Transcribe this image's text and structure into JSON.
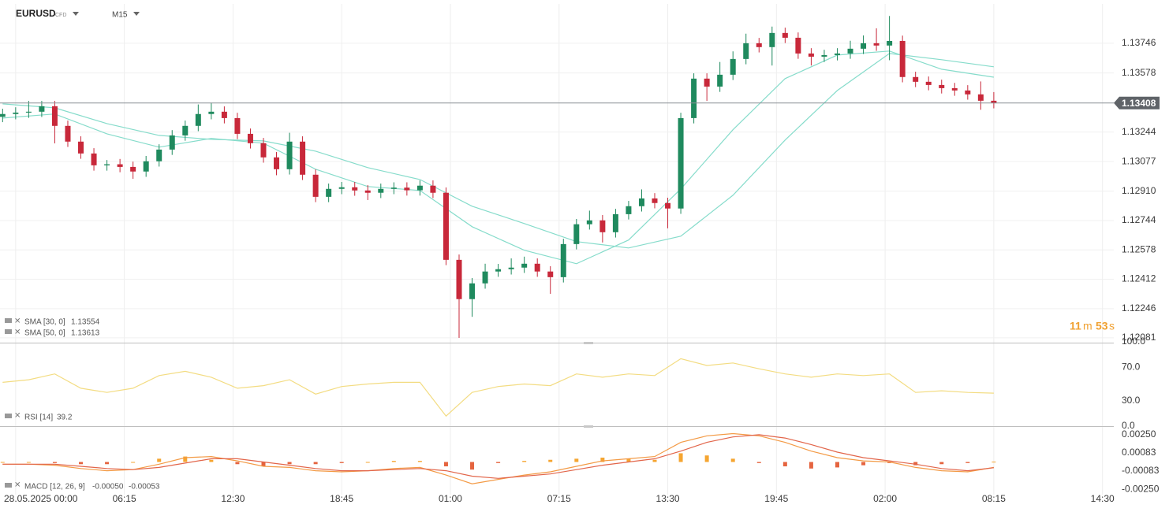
{
  "header": {
    "symbol": "EURUSD",
    "badge": "CFD",
    "timeframe": "M15"
  },
  "countdown": [
    "11",
    "m",
    "53",
    "s"
  ],
  "chart_data": [
    {
      "type": "candlestick",
      "x": [
        -3,
        0,
        3,
        6,
        9,
        12,
        15,
        18,
        21,
        24,
        27,
        30,
        33,
        36,
        39,
        42,
        45,
        48,
        51,
        54,
        57,
        60,
        63,
        66,
        69,
        72,
        75,
        78,
        81,
        84,
        87,
        90,
        93,
        96,
        99,
        102,
        105,
        108,
        111,
        114,
        117,
        120,
        123,
        126,
        129,
        132,
        135,
        138,
        141,
        144,
        147,
        150,
        153,
        156,
        159,
        162,
        165,
        168,
        171,
        174,
        177,
        180,
        183,
        186,
        189,
        192,
        195,
        198,
        201,
        204,
        207,
        210,
        213,
        216,
        219,
        222,
        225
      ],
      "open": [
        1.1333,
        1.13346,
        1.13354,
        1.13359,
        1.1339,
        1.13279,
        1.1319,
        1.13123,
        1.13056,
        1.13062,
        1.13047,
        1.13021,
        1.13079,
        1.13145,
        1.13225,
        1.13279,
        1.13346,
        1.13359,
        1.13323,
        1.13234,
        1.13181,
        1.13101,
        1.13034,
        1.1319,
        1.13003,
        1.12878,
        1.12923,
        1.12932,
        1.12914,
        1.12901,
        1.12923,
        1.1293,
        1.12915,
        1.12941,
        1.12901,
        1.12522,
        1.123,
        1.12389,
        1.12456,
        1.12469,
        1.12478,
        1.125,
        1.12456,
        1.12424,
        1.12611,
        1.12723,
        1.12745,
        1.12678,
        1.1278,
        1.12825,
        1.12869,
        1.12843,
        1.12812,
        1.13323,
        1.13546,
        1.13501,
        1.13568,
        1.13657,
        1.13746,
        1.13724,
        1.13804,
        1.13777,
        1.13688,
        1.1367,
        1.13679,
        1.13688,
        1.13715,
        1.13746,
        1.13733,
        1.13759,
        1.13555,
        1.13528,
        1.1351,
        1.13492,
        1.13479,
        1.13457,
        1.13421
      ],
      "high": [
        1.13376,
        1.13384,
        1.1342,
        1.1342,
        1.1342,
        1.13309,
        1.1322,
        1.13153,
        1.13086,
        1.13092,
        1.13077,
        1.13109,
        1.13175,
        1.13255,
        1.13309,
        1.134,
        1.1341,
        1.13389,
        1.13353,
        1.13264,
        1.13211,
        1.13131,
        1.1324,
        1.1322,
        1.13033,
        1.12953,
        1.12962,
        1.12962,
        1.12944,
        1.12953,
        1.1296,
        1.1296,
        1.12971,
        1.12971,
        1.12931,
        1.12552,
        1.12419,
        1.125,
        1.12499,
        1.1253,
        1.1254,
        1.1253,
        1.12486,
        1.12641,
        1.12753,
        1.128,
        1.12775,
        1.1281,
        1.12855,
        1.1292,
        1.12899,
        1.12873,
        1.13353,
        1.13576,
        1.13576,
        1.1364,
        1.137,
        1.138,
        1.13776,
        1.1384,
        1.13834,
        1.13807,
        1.13718,
        1.13709,
        1.13718,
        1.1376,
        1.1379,
        1.1383,
        1.139,
        1.13789,
        1.13585,
        1.13558,
        1.1354,
        1.13522,
        1.13509,
        1.1353,
        1.1347
      ],
      "low": [
        1.133,
        1.13316,
        1.13324,
        1.13329,
        1.1318,
        1.1316,
        1.13093,
        1.13026,
        1.13026,
        1.13017,
        1.1298,
        1.12991,
        1.13049,
        1.13115,
        1.13195,
        1.13249,
        1.13316,
        1.13293,
        1.13204,
        1.13151,
        1.13071,
        1.13,
        1.13004,
        1.12973,
        1.12848,
        1.12848,
        1.12893,
        1.12884,
        1.1286,
        1.12871,
        1.12893,
        1.12885,
        1.12885,
        1.12871,
        1.12492,
        1.12081,
        1.122,
        1.12359,
        1.12426,
        1.12439,
        1.12448,
        1.12426,
        1.1233,
        1.12394,
        1.12581,
        1.12693,
        1.1262,
        1.12648,
        1.1275,
        1.12795,
        1.12813,
        1.127,
        1.12782,
        1.13293,
        1.1342,
        1.13471,
        1.13538,
        1.13627,
        1.13694,
        1.1362,
        1.13747,
        1.13658,
        1.1362,
        1.1364,
        1.13649,
        1.13658,
        1.13685,
        1.13703,
        1.1365,
        1.13525,
        1.13498,
        1.1348,
        1.13462,
        1.13449,
        1.13427,
        1.1337,
        1.13378
      ],
      "close": [
        1.13346,
        1.13354,
        1.13359,
        1.1339,
        1.13279,
        1.1319,
        1.13123,
        1.13056,
        1.13062,
        1.13047,
        1.13021,
        1.13079,
        1.13145,
        1.13225,
        1.13279,
        1.13346,
        1.13359,
        1.13323,
        1.13234,
        1.13181,
        1.13101,
        1.13034,
        1.1319,
        1.13003,
        1.12878,
        1.12923,
        1.12932,
        1.12914,
        1.12901,
        1.12923,
        1.1293,
        1.12915,
        1.12941,
        1.12901,
        1.12522,
        1.123,
        1.12389,
        1.12456,
        1.12469,
        1.12478,
        1.125,
        1.12456,
        1.12424,
        1.12611,
        1.12723,
        1.12745,
        1.12678,
        1.1278,
        1.12825,
        1.12869,
        1.12843,
        1.12812,
        1.13323,
        1.13546,
        1.13501,
        1.13568,
        1.13657,
        1.13746,
        1.13724,
        1.13804,
        1.13777,
        1.13688,
        1.1367,
        1.13679,
        1.13688,
        1.13715,
        1.13746,
        1.13733,
        1.13759,
        1.13555,
        1.13528,
        1.1351,
        1.13492,
        1.13479,
        1.13457,
        1.13421,
        1.13408
      ],
      "up_color": "#1f8a5e",
      "down_color": "#c8283a",
      "price_line_color": "#8a8f96",
      "series": [
        {
          "name": "SMA [30, 0]",
          "color": "#86dccb",
          "x": [
            -3,
            9,
            21,
            33,
            45,
            57,
            69,
            81,
            93,
            105,
            117,
            129,
            141,
            153,
            165,
            177,
            189,
            201,
            213,
            225
          ],
          "values": [
            1.13323,
            1.13346,
            1.13234,
            1.13159,
            1.13208,
            1.13181,
            1.13034,
            1.12936,
            1.12914,
            1.12709,
            1.12576,
            1.125,
            1.12634,
            1.12923,
            1.13257,
            1.13546,
            1.13679,
            1.13702,
            1.13599,
            1.13554
          ]
        },
        {
          "name": "SMA [50, 0]",
          "color": "#86dccb",
          "x": [
            -3,
            9,
            21,
            33,
            45,
            57,
            69,
            81,
            93,
            105,
            117,
            129,
            141,
            153,
            165,
            177,
            189,
            201,
            213,
            225
          ],
          "values": [
            1.13403,
            1.13381,
            1.13292,
            1.13225,
            1.13203,
            1.13194,
            1.13136,
            1.13043,
            1.12976,
            1.12825,
            1.12727,
            1.12625,
            1.12589,
            1.12656,
            1.12887,
            1.13199,
            1.13479,
            1.13688,
            1.13653,
            1.13613
          ]
        }
      ],
      "xlim": [
        -3.6,
        252.6
      ],
      "xticks": [
        {
          "value": 0,
          "label": "28.05.2025  00:00"
        },
        {
          "value": 25,
          "label": "06:15"
        },
        {
          "value": 50,
          "label": "12:30"
        },
        {
          "value": 75,
          "label": "18:45"
        },
        {
          "value": 100,
          "label": "01:00"
        },
        {
          "value": 125,
          "label": "07:15"
        },
        {
          "value": 150,
          "label": "13:30"
        },
        {
          "value": 175,
          "label": "19:45"
        },
        {
          "value": 200,
          "label": "02:00"
        },
        {
          "value": 225,
          "label": "08:15"
        },
        {
          "value": 250,
          "label": "14:30"
        }
      ],
      "ylim": [
        1.12054,
        1.13968
      ],
      "yticks": [
        1.13746,
        1.13578,
        1.13244,
        1.13077,
        {
          "value": 1.1291,
          "label": "1.12910"
        },
        1.12744,
        1.12578,
        1.12412,
        1.12246,
        1.12081
      ],
      "grid": true
    },
    {
      "type": "line",
      "series": [
        {
          "name": "RSI [14]",
          "color": "#f3dc82",
          "x": [
            -3,
            3,
            9,
            15,
            21,
            27,
            33,
            39,
            45,
            51,
            57,
            63,
            69,
            75,
            81,
            87,
            93,
            99,
            105,
            111,
            117,
            123,
            129,
            135,
            141,
            147,
            153,
            159,
            165,
            171,
            177,
            183,
            189,
            195,
            201,
            207,
            213,
            219,
            225
          ],
          "values": [
            52,
            55,
            62,
            45,
            40,
            45,
            60,
            65,
            58,
            45,
            48,
            55,
            38,
            47,
            50,
            52,
            52,
            12,
            40,
            47,
            50,
            48,
            62,
            58,
            62,
            60,
            80,
            72,
            75,
            68,
            62,
            58,
            62,
            60,
            62,
            40,
            42,
            40,
            39.2
          ]
        }
      ],
      "ylim": [
        0,
        100
      ],
      "yticks": [
        {
          "value": 100,
          "label": "100.0"
        },
        {
          "value": 70,
          "label": "70.0"
        },
        {
          "value": 30,
          "label": "30.0"
        },
        {
          "value": 0,
          "label": "0.0"
        }
      ]
    },
    {
      "type": "macd",
      "name": "MACD [12, 26, 9]",
      "legend_labels": [
        "-0.00050",
        "-0.00053"
      ],
      "x": [
        -3,
        3,
        9,
        15,
        21,
        27,
        33,
        39,
        45,
        51,
        57,
        63,
        69,
        75,
        81,
        87,
        93,
        99,
        105,
        111,
        117,
        123,
        129,
        135,
        141,
        147,
        153,
        159,
        165,
        171,
        177,
        183,
        189,
        195,
        201,
        207,
        213,
        219,
        225
      ],
      "histogram": [
        0,
        0,
        -0.0001,
        -0.0002,
        -0.0002,
        0,
        0.0003,
        0.0005,
        0.0002,
        -0.0002,
        -0.0004,
        -0.0002,
        -0.0002,
        -0.0001,
        0,
        0.0001,
        0.0001,
        -0.0004,
        -0.0007,
        -0.0001,
        0.0001,
        0.0002,
        0.0003,
        0.0004,
        0.0003,
        0.0002,
        0.0008,
        0.0006,
        0.0003,
        -0.0001,
        -0.0004,
        -0.0006,
        -0.0005,
        -0.0003,
        -0.0001,
        -0.0003,
        -0.0002,
        -0.0001,
        3e-05
      ],
      "histogram_colors": [
        "#f5a531",
        "#e5643f"
      ],
      "series": [
        {
          "name": "MACD",
          "color": "#f39a45",
          "values": [
            -0.0002,
            -0.0002,
            -0.0003,
            -0.0006,
            -0.0008,
            -0.0007,
            -0.0002,
            0.0004,
            0.0005,
            0.0001,
            -0.0004,
            -0.0005,
            -0.0008,
            -0.0009,
            -0.0008,
            -0.0006,
            -0.0005,
            -0.0012,
            -0.002,
            -0.0016,
            -0.0012,
            -0.0009,
            -0.0004,
            0.0001,
            0.0003,
            0.0005,
            0.0018,
            0.0024,
            0.0026,
            0.0024,
            0.0018,
            0.001,
            0.0004,
            0.0001,
            0,
            -0.0005,
            -0.0008,
            -0.0009,
            -0.0005
          ]
        },
        {
          "name": "Signal",
          "color": "#e2654a",
          "values": [
            -0.0002,
            -0.0002,
            -0.0002,
            -0.0004,
            -0.0006,
            -0.0007,
            -0.0005,
            -0.0001,
            0.0003,
            0.0003,
            0,
            -0.0003,
            -0.0006,
            -0.0008,
            -0.0008,
            -0.0007,
            -0.0006,
            -0.0008,
            -0.0013,
            -0.0015,
            -0.0013,
            -0.0011,
            -0.0007,
            -0.0003,
            0,
            0.0003,
            0.001,
            0.0018,
            0.0023,
            0.0025,
            0.0022,
            0.0016,
            0.0009,
            0.0004,
            0.0001,
            -0.0002,
            -0.0006,
            -0.0008,
            -0.00053
          ]
        }
      ],
      "ylim": [
        -0.003,
        0.003
      ],
      "yticks": [
        {
          "value": 0.0025,
          "label": "0.00250"
        },
        {
          "value": 0.00083,
          "label": "0.00083"
        },
        {
          "value": -0.00083,
          "label": "-0.00083"
        },
        {
          "value": -0.0025,
          "label": "-0.00250"
        }
      ]
    }
  ]
}
